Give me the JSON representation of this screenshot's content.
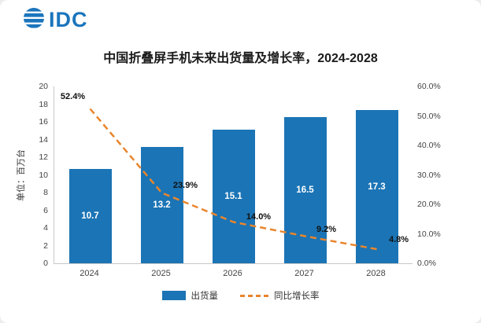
{
  "logo": {
    "text": "IDC"
  },
  "chart_data": {
    "type": "bar+line",
    "title": "中国折叠屏手机未来出货量及增长率，2024-2028",
    "categories": [
      "2024",
      "2025",
      "2026",
      "2027",
      "2028"
    ],
    "series": [
      {
        "name": "出货量",
        "type": "bar",
        "axis": "left",
        "color": "#1B74B5",
        "values": [
          10.7,
          13.2,
          15.1,
          16.5,
          17.3
        ]
      },
      {
        "name": "同比增长率",
        "type": "line",
        "axis": "right",
        "style": "dashed",
        "color": "#E8862D",
        "values": [
          52.4,
          23.9,
          14.0,
          9.2,
          4.8
        ]
      }
    ],
    "bar_labels": [
      "10.7",
      "13.2",
      "15.1",
      "16.5",
      "17.3"
    ],
    "line_labels": [
      "52.4%",
      "23.9%",
      "14.0%",
      "9.2%",
      "4.8%"
    ],
    "ylabel_left": "单位：百万台",
    "left_axis": {
      "min": 0,
      "max": 20,
      "step": 2
    },
    "right_axis": {
      "min": 0,
      "max": 60,
      "step": 10,
      "format": "percent"
    },
    "grid": false,
    "legend_position": "bottom",
    "legend": [
      {
        "label": "出货量",
        "type": "bar",
        "color": "#1B74B5"
      },
      {
        "label": "同比增长率",
        "type": "line",
        "color": "#E8862D"
      }
    ]
  }
}
